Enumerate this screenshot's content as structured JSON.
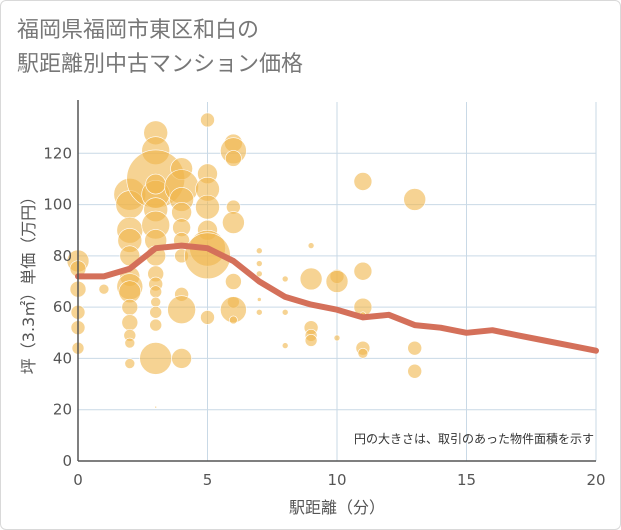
{
  "title_line1": "福岡県福岡市東区和白の",
  "title_line2": "駅距離別中古マンション価格",
  "colors": {
    "bubble": "#f0b54b",
    "trend": "#d4705a",
    "grid": "#c9d9e6",
    "axis": "#555555"
  },
  "chart_data": {
    "type": "scatter",
    "title": "福岡県福岡市東区和白の駅距離別中古マンション価格",
    "xlabel": "駅距離（分）",
    "ylabel": "坪（3.3㎡）単価（万円）",
    "xlim": [
      0,
      20
    ],
    "ylim": [
      0,
      140
    ],
    "xticks": [
      0,
      5,
      10,
      15,
      20
    ],
    "yticks": [
      0,
      20,
      40,
      60,
      80,
      100,
      120
    ],
    "grid": true,
    "note": "円の大きさは、取引のあった物件面積を示す",
    "bubbles": [
      {
        "x": 0,
        "y": 78,
        "s": 11
      },
      {
        "x": 0,
        "y": 75,
        "s": 8
      },
      {
        "x": 0,
        "y": 67,
        "s": 8
      },
      {
        "x": 0,
        "y": 58,
        "s": 7
      },
      {
        "x": 0,
        "y": 52,
        "s": 7
      },
      {
        "x": 0,
        "y": 44,
        "s": 6
      },
      {
        "x": 1,
        "y": 67,
        "s": 5
      },
      {
        "x": 2,
        "y": 104,
        "s": 16
      },
      {
        "x": 2,
        "y": 100,
        "s": 14
      },
      {
        "x": 2,
        "y": 90,
        "s": 13
      },
      {
        "x": 2,
        "y": 86,
        "s": 12
      },
      {
        "x": 2,
        "y": 80,
        "s": 10
      },
      {
        "x": 2,
        "y": 72,
        "s": 10
      },
      {
        "x": 2,
        "y": 68,
        "s": 13
      },
      {
        "x": 2,
        "y": 66,
        "s": 11
      },
      {
        "x": 2,
        "y": 60,
        "s": 8
      },
      {
        "x": 2,
        "y": 54,
        "s": 8
      },
      {
        "x": 2,
        "y": 49,
        "s": 6
      },
      {
        "x": 2,
        "y": 46,
        "s": 5
      },
      {
        "x": 2,
        "y": 38,
        "s": 5
      },
      {
        "x": 3,
        "y": 128,
        "s": 12
      },
      {
        "x": 3,
        "y": 121,
        "s": 14
      },
      {
        "x": 3,
        "y": 110,
        "s": 29
      },
      {
        "x": 3,
        "y": 104,
        "s": 14
      },
      {
        "x": 3,
        "y": 98,
        "s": 12
      },
      {
        "x": 3,
        "y": 92,
        "s": 14
      },
      {
        "x": 3,
        "y": 86,
        "s": 11
      },
      {
        "x": 3,
        "y": 80,
        "s": 10
      },
      {
        "x": 3,
        "y": 73,
        "s": 8
      },
      {
        "x": 3,
        "y": 69,
        "s": 7
      },
      {
        "x": 3,
        "y": 66,
        "s": 6
      },
      {
        "x": 3,
        "y": 62,
        "s": 5
      },
      {
        "x": 3,
        "y": 58,
        "s": 6
      },
      {
        "x": 3,
        "y": 53,
        "s": 6
      },
      {
        "x": 3,
        "y": 40,
        "s": 16
      },
      {
        "x": 3,
        "y": 108,
        "s": 10
      },
      {
        "x": 3,
        "y": 21,
        "s": 1
      },
      {
        "x": 4,
        "y": 114,
        "s": 11
      },
      {
        "x": 4,
        "y": 107,
        "s": 17
      },
      {
        "x": 4,
        "y": 102,
        "s": 12
      },
      {
        "x": 4,
        "y": 97,
        "s": 10
      },
      {
        "x": 4,
        "y": 91,
        "s": 9
      },
      {
        "x": 4,
        "y": 86,
        "s": 8
      },
      {
        "x": 4,
        "y": 80,
        "s": 7
      },
      {
        "x": 4,
        "y": 65,
        "s": 7
      },
      {
        "x": 4,
        "y": 59,
        "s": 14
      },
      {
        "x": 4,
        "y": 40,
        "s": 10
      },
      {
        "x": 5,
        "y": 133,
        "s": 7
      },
      {
        "x": 5,
        "y": 112,
        "s": 10
      },
      {
        "x": 5,
        "y": 106,
        "s": 12
      },
      {
        "x": 5,
        "y": 99,
        "s": 12
      },
      {
        "x": 5,
        "y": 90,
        "s": 10
      },
      {
        "x": 5,
        "y": 83,
        "s": 18
      },
      {
        "x": 5,
        "y": 80,
        "s": 23
      },
      {
        "x": 5,
        "y": 56,
        "s": 7
      },
      {
        "x": 6,
        "y": 124,
        "s": 9
      },
      {
        "x": 6,
        "y": 121,
        "s": 13
      },
      {
        "x": 6,
        "y": 118,
        "s": 8
      },
      {
        "x": 6,
        "y": 99,
        "s": 7
      },
      {
        "x": 6,
        "y": 93,
        "s": 11
      },
      {
        "x": 6,
        "y": 70,
        "s": 8
      },
      {
        "x": 6,
        "y": 62,
        "s": 6
      },
      {
        "x": 6,
        "y": 59,
        "s": 13
      },
      {
        "x": 6,
        "y": 55,
        "s": 4
      },
      {
        "x": 7,
        "y": 82,
        "s": 3
      },
      {
        "x": 7,
        "y": 77,
        "s": 3
      },
      {
        "x": 7,
        "y": 73,
        "s": 3
      },
      {
        "x": 7,
        "y": 63,
        "s": 2
      },
      {
        "x": 7,
        "y": 58,
        "s": 3
      },
      {
        "x": 8,
        "y": 71,
        "s": 3
      },
      {
        "x": 8,
        "y": 58,
        "s": 3
      },
      {
        "x": 8,
        "y": 45,
        "s": 3
      },
      {
        "x": 9,
        "y": 84,
        "s": 3
      },
      {
        "x": 9,
        "y": 71,
        "s": 11
      },
      {
        "x": 9,
        "y": 52,
        "s": 7
      },
      {
        "x": 9,
        "y": 49,
        "s": 6
      },
      {
        "x": 9,
        "y": 47,
        "s": 6
      },
      {
        "x": 10,
        "y": 72,
        "s": 7
      },
      {
        "x": 10,
        "y": 70,
        "s": 11
      },
      {
        "x": 10,
        "y": 48,
        "s": 3
      },
      {
        "x": 11,
        "y": 109,
        "s": 9
      },
      {
        "x": 11,
        "y": 74,
        "s": 9
      },
      {
        "x": 11,
        "y": 60,
        "s": 9
      },
      {
        "x": 11,
        "y": 57,
        "s": 3
      },
      {
        "x": 11,
        "y": 44,
        "s": 7
      },
      {
        "x": 11,
        "y": 42,
        "s": 5
      },
      {
        "x": 13,
        "y": 102,
        "s": 11
      },
      {
        "x": 13,
        "y": 44,
        "s": 7
      },
      {
        "x": 13,
        "y": 35,
        "s": 7
      }
    ],
    "trend": {
      "x": [
        0,
        1,
        2,
        3,
        4,
        5,
        6,
        7,
        8,
        9,
        10,
        11,
        12,
        13,
        14,
        15,
        16,
        17,
        18,
        19,
        20
      ],
      "y": [
        72,
        72,
        75,
        83,
        84,
        83,
        78,
        70,
        64,
        61,
        59,
        56,
        57,
        53,
        52,
        50,
        51,
        49,
        47,
        45,
        43
      ]
    }
  }
}
